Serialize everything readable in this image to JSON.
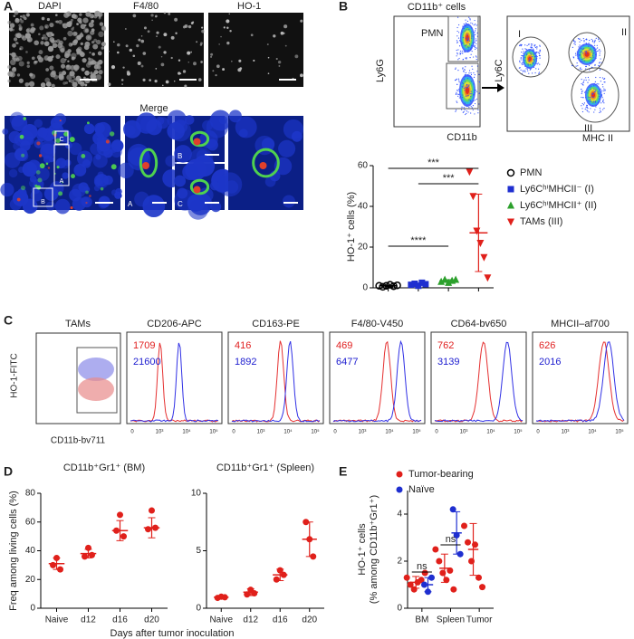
{
  "panels": {
    "A": {
      "label": "A",
      "images": [
        "DAPI",
        "F4/80",
        "HO-1"
      ],
      "merge": "Merge",
      "insets": [
        "A",
        "B",
        "C"
      ]
    },
    "B": {
      "label": "B",
      "gate_title": "CD11b⁺ cells",
      "gate": "PMN",
      "plot1_y": "Ly6G",
      "plot1_x": "CD11b",
      "plot2_y": "Ly6C",
      "plot2_x": "MHC II",
      "populations": [
        "I",
        "II",
        "III"
      ]
    },
    "C": {
      "label": "C",
      "flow_title": "TAMs",
      "flow_y": "HO-1-FITC",
      "flow_x": "CD11b-bv711",
      "axis_ticks": [
        "0",
        "10³",
        "10⁴",
        "10⁵"
      ],
      "histograms": [
        {
          "title": "CD206-APC",
          "red": 1709,
          "blue": 21600
        },
        {
          "title": "CD163-PE",
          "red": 416,
          "blue": 1892
        },
        {
          "title": "F4/80-V450",
          "red": 469,
          "blue": 6477
        },
        {
          "title": "CD64-bv650",
          "red": 762,
          "blue": 3139
        },
        {
          "title": "MHCII–af700",
          "red": 626,
          "blue": 2016
        }
      ]
    },
    "D": {
      "label": "D",
      "xlabel": "Days after tumor inoculation"
    },
    "E": {
      "label": "E"
    }
  },
  "chart_data": [
    {
      "type": "dot",
      "ylabel": "HO-1⁺ cells (%)",
      "ylim": [
        0,
        60
      ],
      "yticks": [
        0,
        20,
        40,
        60
      ],
      "series": [
        {
          "name": "PMN",
          "color": "#000000",
          "marker": "circle-open",
          "values": [
            1,
            0.5,
            1,
            1.5,
            0.8,
            1.2
          ],
          "mean": 1,
          "error": 0.4
        },
        {
          "name": "Ly6CʰⁱMHCII⁻ (I)",
          "color": "#1f2fd0",
          "marker": "square",
          "values": [
            1.5,
            2,
            1,
            2.5,
            1.8
          ],
          "mean": 1.8,
          "error": 0.5
        },
        {
          "name": "Ly6CʰⁱMHCII⁺ (II)",
          "color": "#2ca02c",
          "marker": "triangle-up",
          "values": [
            3,
            4,
            2.5,
            3.5,
            4
          ],
          "mean": 3.4,
          "error": 0.6
        },
        {
          "name": "TAMs (III)",
          "color": "#e0201b",
          "marker": "triangle-down",
          "values": [
            57,
            45,
            28,
            22,
            15,
            5
          ],
          "mean": 27,
          "error": 19
        }
      ],
      "annotations": [
        "***",
        "***",
        "****"
      ]
    },
    {
      "type": "dot",
      "title": "CD11b⁺Gr1⁺ (BM)",
      "ylabel": "Freq among living cells (%)",
      "categories": [
        "Naive",
        "d12",
        "d16",
        "d20"
      ],
      "ylim": [
        0,
        80
      ],
      "yticks": [
        0,
        20,
        40,
        60,
        80
      ],
      "color": "#e0201b",
      "values": [
        [
          30,
          35,
          27
        ],
        [
          36,
          42,
          37
        ],
        [
          54,
          65,
          50
        ],
        [
          55,
          68,
          56
        ]
      ],
      "means": [
        31,
        38,
        54,
        56
      ],
      "errors": [
        4,
        3,
        7,
        7
      ]
    },
    {
      "type": "dot",
      "title": "CD11b⁺Gr1⁺ (Spleen)",
      "categories": [
        "Naive",
        "d12",
        "d16",
        "d20"
      ],
      "ylim": [
        0,
        10
      ],
      "yticks": [
        0,
        5,
        10
      ],
      "color": "#e0201b",
      "values": [
        [
          0.9,
          1.0,
          0.95
        ],
        [
          1.2,
          1.6,
          1.3
        ],
        [
          2.5,
          3.3,
          2.9
        ],
        [
          7.5,
          6,
          4.5
        ]
      ],
      "means": [
        0.95,
        1.4,
        2.9,
        6
      ],
      "errors": [
        0.05,
        0.3,
        0.5,
        1.5
      ]
    },
    {
      "type": "dot",
      "ylabel": [
        "HO-1⁺ cells",
        "(% among CD11b⁺Gr1⁺)"
      ],
      "categories": [
        "BM",
        "Spleen",
        "Tumor"
      ],
      "ylim": [
        0,
        5
      ],
      "yticks": [
        0,
        2,
        4
      ],
      "series": [
        {
          "name": "Tumor-bearing",
          "color": "#e0201b",
          "marker": "circle",
          "values": [
            [
              1.3,
              1.0,
              0.8,
              1.1,
              1.2,
              1.5
            ],
            [
              2.5,
              2.0,
              1.5,
              1.2,
              1.6,
              0.8
            ],
            [
              3.5,
              2.8,
              2.0,
              2.7,
              1.3,
              0.9
            ]
          ],
          "means": [
            1.1,
            1.7,
            2.5
          ],
          "errors": [
            0.25,
            0.6,
            1.1
          ]
        },
        {
          "name": "Naïve",
          "color": "#1f2fd0",
          "marker": "circle",
          "values": [
            [
              1.0,
              0.7,
              1.3
            ],
            [
              4.2,
              3.1,
              2.3
            ],
            null
          ],
          "means": [
            1.0,
            3.2,
            null
          ],
          "errors": [
            0.3,
            0.9,
            null
          ]
        }
      ],
      "annotations": [
        "ns",
        "ns"
      ]
    }
  ]
}
